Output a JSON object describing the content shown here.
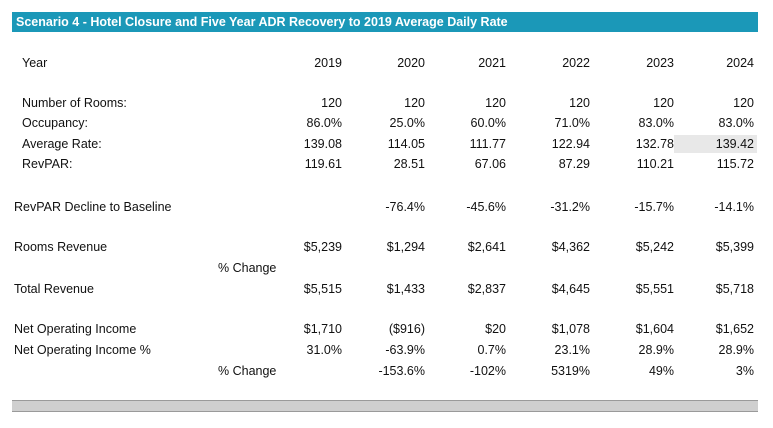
{
  "title": "Scenario 4 - Hotel Closure and Five Year ADR Recovery to 2019 Average Daily Rate",
  "header": {
    "label": "Year",
    "years": [
      "2019",
      "2020",
      "2021",
      "2022",
      "2023",
      "2024"
    ]
  },
  "rows": {
    "rooms": {
      "label": "Number of Rooms:",
      "values": [
        "120",
        "120",
        "120",
        "120",
        "120",
        "120"
      ]
    },
    "occupancy": {
      "label": "Occupancy:",
      "values": [
        "86.0%",
        "25.0%",
        "60.0%",
        "71.0%",
        "83.0%",
        "83.0%"
      ]
    },
    "avg_rate": {
      "label": "Average Rate:",
      "values": [
        "139.08",
        "114.05",
        "111.77",
        "122.94",
        "132.78",
        "139.42"
      ]
    },
    "revpar": {
      "label": "RevPAR:",
      "values": [
        "119.61",
        "28.51",
        "67.06",
        "87.29",
        "110.21",
        "115.72"
      ]
    },
    "revpar_decline": {
      "label": "RevPAR Decline to Baseline",
      "values": [
        "",
        "-76.4%",
        "-45.6%",
        "-31.2%",
        "-15.7%",
        "-14.1%"
      ]
    },
    "rooms_revenue": {
      "label": "Rooms Revenue",
      "values": [
        "$5,239",
        "$1,294",
        "$2,641",
        "$4,362",
        "$5,242",
        "$5,399"
      ]
    },
    "rooms_pct_change": {
      "label": "% Change",
      "values": [
        "",
        "",
        "",
        "",
        "",
        ""
      ]
    },
    "total_revenue": {
      "label": "Total Revenue",
      "values": [
        "$5,515",
        "$1,433",
        "$2,837",
        "$4,645",
        "$5,551",
        "$5,718"
      ]
    },
    "noi": {
      "label": "Net Operating Income",
      "values": [
        "$1,710",
        "($916)",
        "$20",
        "$1,078",
        "$1,604",
        "$1,652"
      ]
    },
    "noi_pct": {
      "label": "Net Operating Income %",
      "values": [
        "31.0%",
        "-63.9%",
        "0.7%",
        "23.1%",
        "28.9%",
        "28.9%"
      ]
    },
    "noi_pct_change": {
      "label": "% Change",
      "values": [
        "",
        "-153.6%",
        "-102%",
        "5319%",
        "49%",
        "3%"
      ]
    }
  },
  "colors": {
    "title_bg": "#1b98b8",
    "title_text": "#ffffff",
    "highlight_bg": "#e8e8e8",
    "bottom_bar": "#cfcfcf"
  }
}
